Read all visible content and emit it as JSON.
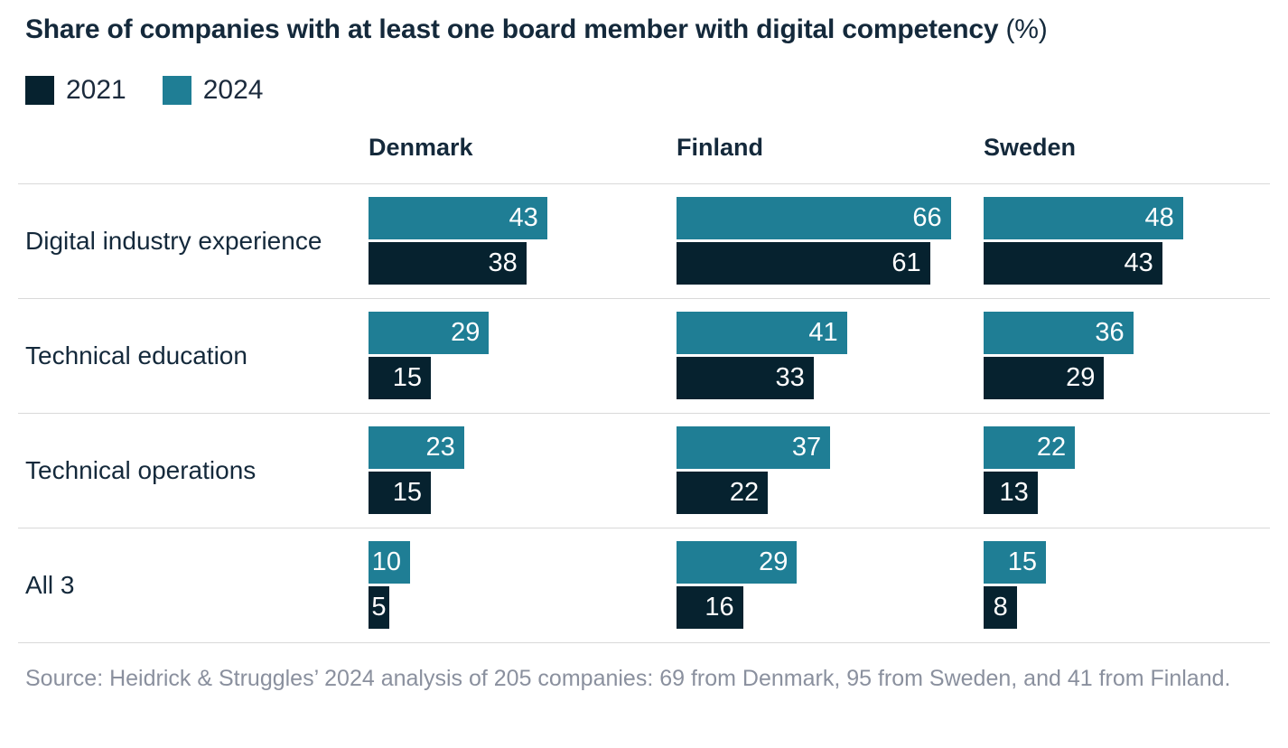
{
  "title": {
    "text": "Share of companies with at least one board member with digital competency",
    "suffix": " (%)"
  },
  "legend": {
    "items": [
      {
        "label": "2021",
        "color": "#06222F"
      },
      {
        "label": "2024",
        "color": "#1F7E95"
      }
    ]
  },
  "source": "Source: Heidrick & Struggles’ 2024 analysis of 205 companies: 69 from Denmark, 95 from Sweden, and 41 from Finland.",
  "chart_data": {
    "type": "bar",
    "orientation": "horizontal",
    "title": "Share of companies with at least one board member with digital competency (%)",
    "value_unit": "%",
    "grid": false,
    "legend_position": "top-left",
    "xlim": [
      0,
      66
    ],
    "categories": [
      "Digital industry experience",
      "Technical education",
      "Technical operations",
      "All 3"
    ],
    "groups": [
      "Denmark",
      "Finland",
      "Sweden"
    ],
    "series": [
      {
        "name": "2024",
        "color": "#1F7E95",
        "values": {
          "Denmark": [
            43,
            29,
            23,
            10
          ],
          "Finland": [
            66,
            41,
            37,
            29
          ],
          "Sweden": [
            48,
            36,
            22,
            15
          ]
        }
      },
      {
        "name": "2021",
        "color": "#06222F",
        "values": {
          "Denmark": [
            38,
            15,
            15,
            5
          ],
          "Finland": [
            61,
            33,
            22,
            16
          ],
          "Sweden": [
            43,
            29,
            13,
            8
          ]
        }
      }
    ]
  }
}
